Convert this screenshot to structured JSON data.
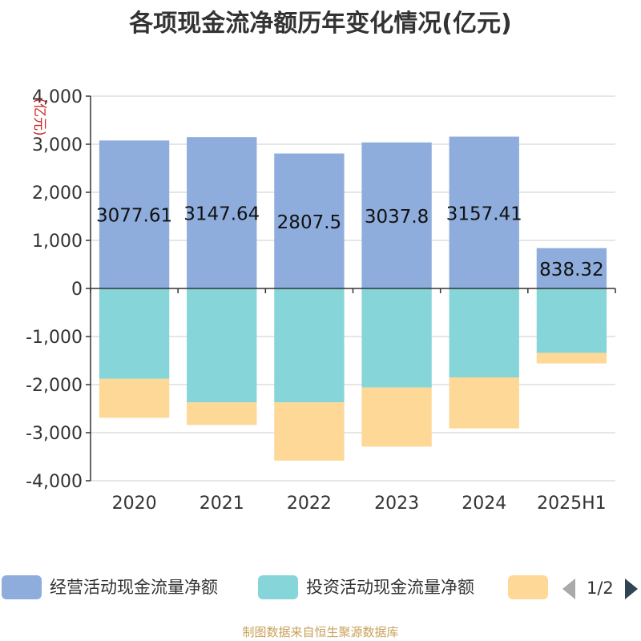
{
  "title": "各项现金流净额历年变化情况(亿元)",
  "footer": "制图数据来自恒生聚源数据库",
  "legend": {
    "items": [
      {
        "label": "经营活动现金流量净额",
        "color": "#8eaddc"
      },
      {
        "label": "投资活动现金流量净额",
        "color": "#86d5d8"
      },
      {
        "label": "",
        "color": "#fdd896"
      }
    ],
    "page_text": "1/2"
  },
  "chart_data": {
    "type": "bar",
    "stacked": true,
    "categories": [
      "2020",
      "2021",
      "2022",
      "2023",
      "2024",
      "2025H1"
    ],
    "ylabel": "(亿元)",
    "ylim": [
      -4000,
      4000
    ],
    "yticks": [
      4000,
      3000,
      2000,
      1000,
      0,
      -1000,
      -2000,
      -3000,
      -4000
    ],
    "ytick_labels": [
      "4,000",
      "3,000",
      "2,000",
      "1,000",
      "0",
      "-1,000",
      "-2,000",
      "-3,000",
      "-4,000"
    ],
    "grid": true,
    "legend_position": "bottom",
    "series": [
      {
        "name": "经营活动现金流量净额",
        "color": "#8eaddc",
        "show_labels": true,
        "values": [
          3077.61,
          3147.64,
          2807.5,
          3037.8,
          3157.41,
          838.32
        ]
      },
      {
        "name": "投资活动现金流量净额",
        "color": "#86d5d8",
        "show_labels": false,
        "values": [
          -1880,
          -2370,
          -2370,
          -2060,
          -1850,
          -1340
        ]
      },
      {
        "color": "#fdd896",
        "show_labels": false,
        "values": [
          -810,
          -470,
          -1210,
          -1230,
          -1060,
          -220
        ]
      }
    ]
  }
}
